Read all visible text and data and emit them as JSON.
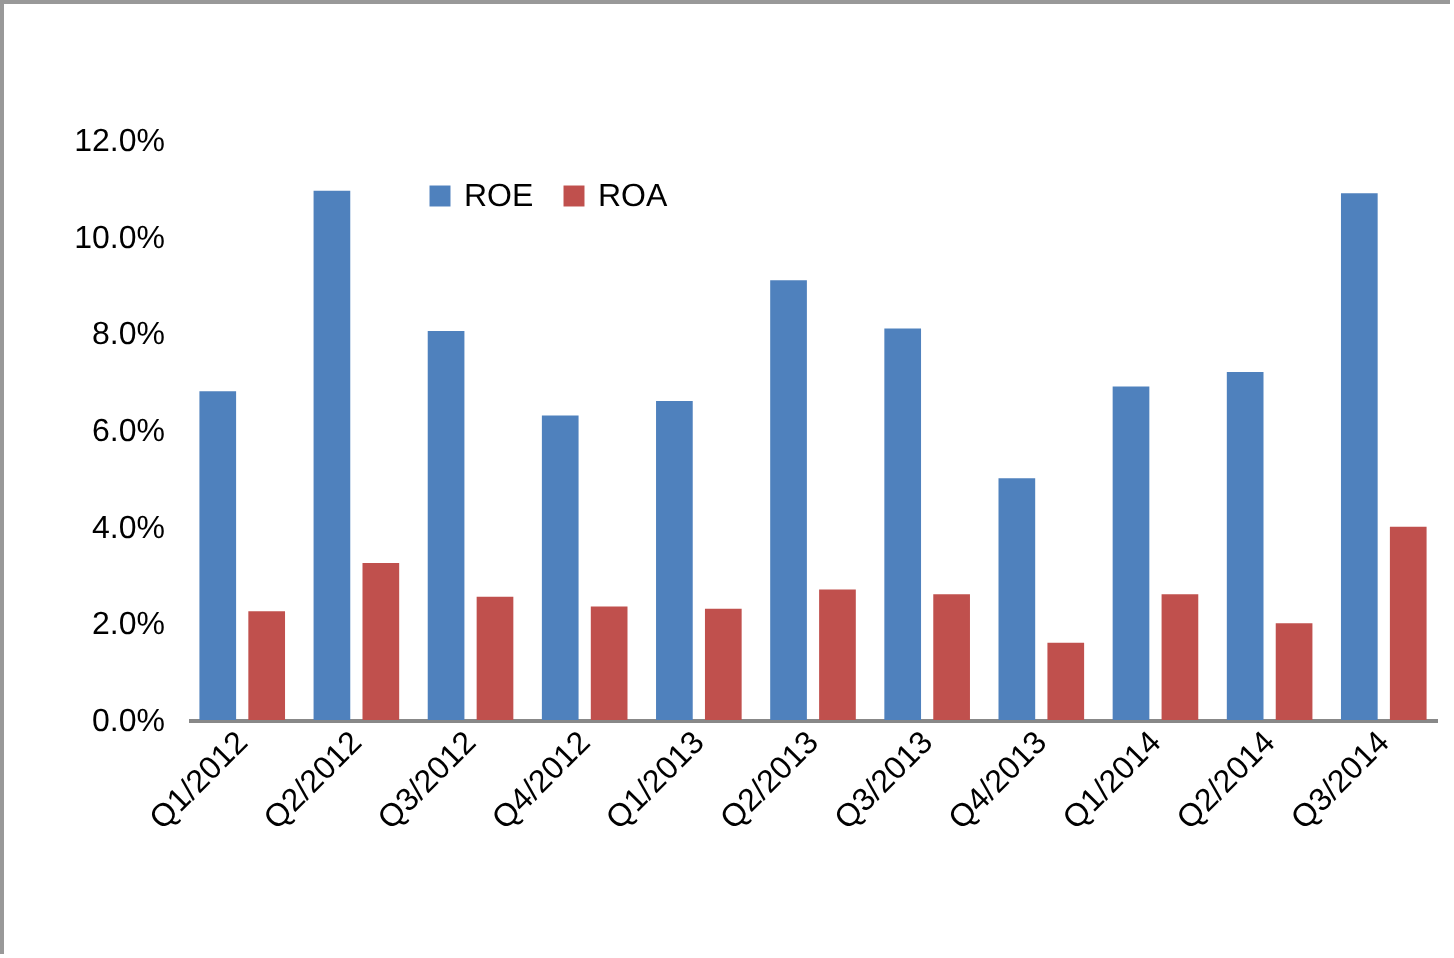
{
  "chart_data": {
    "type": "bar",
    "categories": [
      "Q1/2012",
      "Q2/2012",
      "Q3/2012",
      "Q4/2012",
      "Q1/2013",
      "Q2/2013",
      "Q3/2013",
      "Q4/2013",
      "Q1/2014",
      "Q2/2014",
      "Q3/2014"
    ],
    "series": [
      {
        "name": "ROE",
        "color": "#4f81bd",
        "values": [
          6.8,
          10.95,
          8.05,
          6.3,
          6.6,
          9.1,
          8.1,
          5.0,
          6.9,
          7.2,
          10.9
        ]
      },
      {
        "name": "ROA",
        "color": "#c0504d",
        "values": [
          2.25,
          3.25,
          2.55,
          2.35,
          2.3,
          2.7,
          2.6,
          1.6,
          2.6,
          2.0,
          4.0
        ]
      }
    ],
    "ylim": [
      0,
      12
    ],
    "yticks": [
      {
        "value": 0,
        "label": "0.0%"
      },
      {
        "value": 2,
        "label": "2.0%"
      },
      {
        "value": 4,
        "label": "4.0%"
      },
      {
        "value": 6,
        "label": "6.0%"
      },
      {
        "value": 8,
        "label": "8.0%"
      },
      {
        "value": 10,
        "label": "10.0%"
      },
      {
        "value": 12,
        "label": "12.0%"
      }
    ],
    "grid": false,
    "legend": "top left"
  }
}
